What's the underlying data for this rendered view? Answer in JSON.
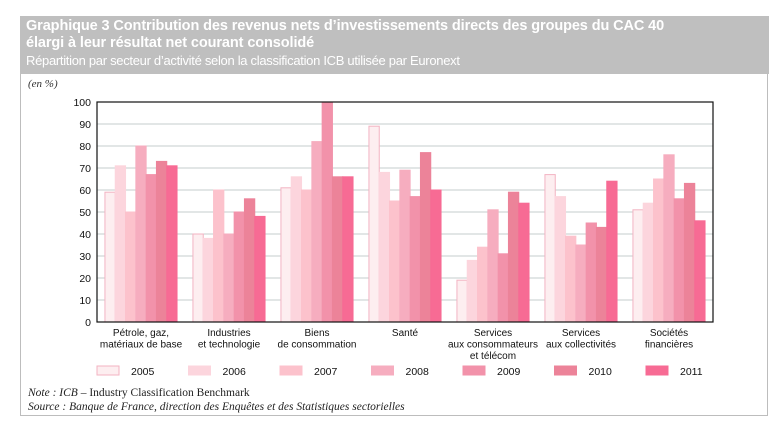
{
  "header": {
    "title_line1": "Graphique 3  Contribution des revenus nets d’investissements directs des groupes du CAC 40",
    "title_line2": "élargi à leur résultat net courant consolidé",
    "subtitle": "Répartition par secteur d’activité selon la classification ICB utilisée par Euronext"
  },
  "unit_label": "(en %)",
  "notes": {
    "note_label": "Note : ICB",
    "note_text": " – Industry Classification Benchmark",
    "source": "Source : Banque de France, direction des Enquêtes et des Statistiques sectorielles"
  },
  "chart_data": {
    "type": "bar",
    "title": "Contribution des revenus nets d’investissements directs des groupes du CAC 40 élargi à leur résultat net courant consolidé",
    "subtitle": "Répartition par secteur d’activité selon la classification ICB utilisée par Euronext",
    "ylabel": "(en %)",
    "xlabel": "",
    "ylim": [
      0,
      100
    ],
    "yticks": [
      0,
      10,
      20,
      30,
      40,
      50,
      60,
      70,
      80,
      90,
      100
    ],
    "grid": true,
    "legend_position": "bottom",
    "categories": [
      [
        "Pétrole, gaz,",
        "matériaux de base"
      ],
      [
        "Industries",
        "et technologie"
      ],
      [
        "Biens",
        "de consommation"
      ],
      [
        "Santé"
      ],
      [
        "Services",
        "aux consommateurs",
        "et télécom"
      ],
      [
        "Services",
        "aux collectivités"
      ],
      [
        "Sociétés",
        "financières"
      ]
    ],
    "series": [
      {
        "name": "2005",
        "color": "#fdeef0",
        "stroke": "#f3b3c2",
        "values": [
          59,
          40,
          61,
          89,
          19,
          67,
          51
        ]
      },
      {
        "name": "2006",
        "color": "#fcd5dd",
        "stroke": "#fcd5dd",
        "values": [
          71,
          38,
          66,
          68,
          28,
          57,
          54
        ]
      },
      {
        "name": "2007",
        "color": "#fcc2cc",
        "stroke": "#fcc2cc",
        "values": [
          50,
          60,
          60,
          55,
          34,
          39,
          65
        ]
      },
      {
        "name": "2008",
        "color": "#f6adbf",
        "stroke": "#f6adbf",
        "values": [
          80,
          40,
          82,
          69,
          51,
          35,
          76
        ]
      },
      {
        "name": "2009",
        "color": "#f292aa",
        "stroke": "#f292aa",
        "values": [
          67,
          50,
          100,
          57,
          31,
          45,
          56
        ]
      },
      {
        "name": "2010",
        "color": "#ec8399",
        "stroke": "#ec8399",
        "values": [
          73,
          56,
          66,
          77,
          59,
          43,
          63
        ]
      },
      {
        "name": "2011",
        "color": "#f76b94",
        "stroke": "#f76b94",
        "values": [
          71,
          48,
          66,
          60,
          54,
          64,
          46
        ]
      }
    ]
  }
}
